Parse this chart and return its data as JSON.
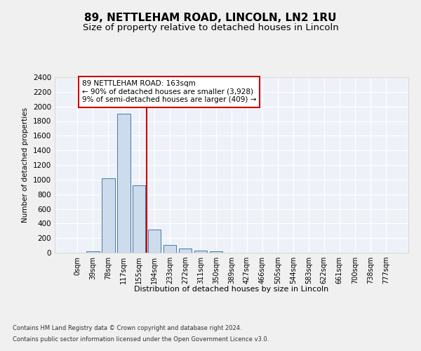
{
  "title1": "89, NETTLEHAM ROAD, LINCOLN, LN2 1RU",
  "title2": "Size of property relative to detached houses in Lincoln",
  "xlabel": "Distribution of detached houses by size in Lincoln",
  "ylabel": "Number of detached properties",
  "categories": [
    "0sqm",
    "39sqm",
    "78sqm",
    "117sqm",
    "155sqm",
    "194sqm",
    "233sqm",
    "272sqm",
    "311sqm",
    "350sqm",
    "389sqm",
    "427sqm",
    "466sqm",
    "505sqm",
    "544sqm",
    "583sqm",
    "622sqm",
    "661sqm",
    "700sqm",
    "738sqm",
    "777sqm"
  ],
  "values": [
    0,
    15,
    1020,
    1900,
    920,
    315,
    110,
    60,
    25,
    15,
    3,
    0,
    0,
    0,
    0,
    0,
    0,
    0,
    0,
    0,
    0
  ],
  "bar_color": "#ccdcec",
  "bar_edge_color": "#4477aa",
  "ylim": [
    0,
    2400
  ],
  "yticks": [
    0,
    200,
    400,
    600,
    800,
    1000,
    1200,
    1400,
    1600,
    1800,
    2000,
    2200,
    2400
  ],
  "red_line_x": 4.5,
  "annotation_text1": "89 NETTLEHAM ROAD: 163sqm",
  "annotation_text2": "← 90% of detached houses are smaller (3,928)",
  "annotation_text3": "9% of semi-detached houses are larger (409) →",
  "footnote1": "Contains HM Land Registry data © Crown copyright and database right 2024.",
  "footnote2": "Contains public sector information licensed under the Open Government Licence v3.0.",
  "background_color": "#eef2f8",
  "grid_color": "#ffffff",
  "title_fontsize": 11,
  "subtitle_fontsize": 9.5,
  "bar_width": 0.85
}
